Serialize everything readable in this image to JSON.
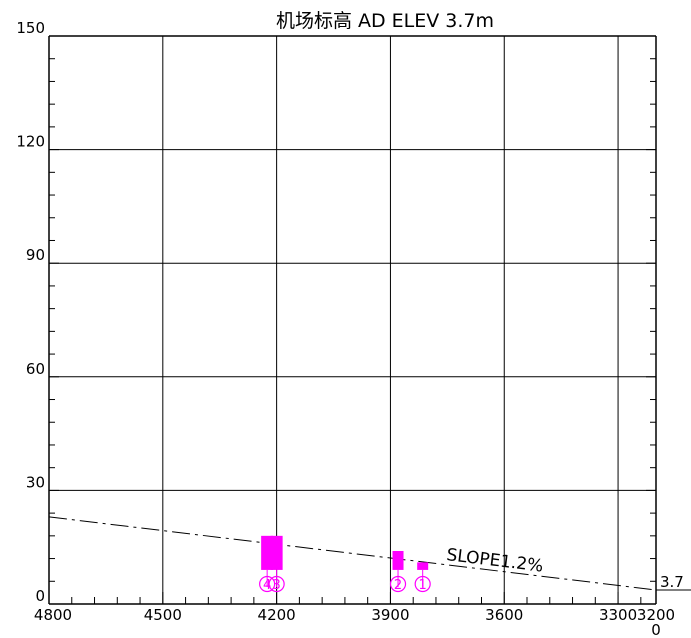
{
  "title": "机场标高 AD ELEV  3.7m",
  "chart_data": {
    "type": "obstacle-profile",
    "title": "机场标高 AD ELEV  3.7m",
    "x_axis": {
      "reversed": true,
      "range": [
        4800,
        3200
      ],
      "major_ticks": [
        4800,
        4500,
        4200,
        3900,
        3600,
        3300,
        3200
      ],
      "tick_labels": [
        "4800",
        "4500",
        "4200",
        "3900",
        "3600",
        "3300",
        "3200"
      ],
      "extra_label": "0"
    },
    "y_axis": {
      "range": [
        0,
        150
      ],
      "major_ticks": [
        0,
        30,
        60,
        90,
        120,
        150
      ],
      "tick_labels": [
        "0",
        "30",
        "60",
        "90",
        "120",
        "150"
      ]
    },
    "grid": true,
    "slope_line": {
      "label": "SLOPE1.2%",
      "x": [
        4800,
        3200
      ],
      "y": [
        23,
        3.7
      ]
    },
    "elevation_marker": {
      "label": "3.7",
      "value": 3.7
    },
    "obstacles": [
      {
        "id": "4",
        "label": "④",
        "x": 4225,
        "height": 18
      },
      {
        "id": "3",
        "label": "③",
        "x": 4200,
        "height": 18
      },
      {
        "id": "2",
        "label": "②",
        "x": 3880,
        "height": 14
      },
      {
        "id": "1",
        "label": "①",
        "x": 3815,
        "height": 11
      }
    ],
    "colors": {
      "grid": "#000000",
      "obstacle": "#ff00ff",
      "background": "#ffffff"
    }
  }
}
